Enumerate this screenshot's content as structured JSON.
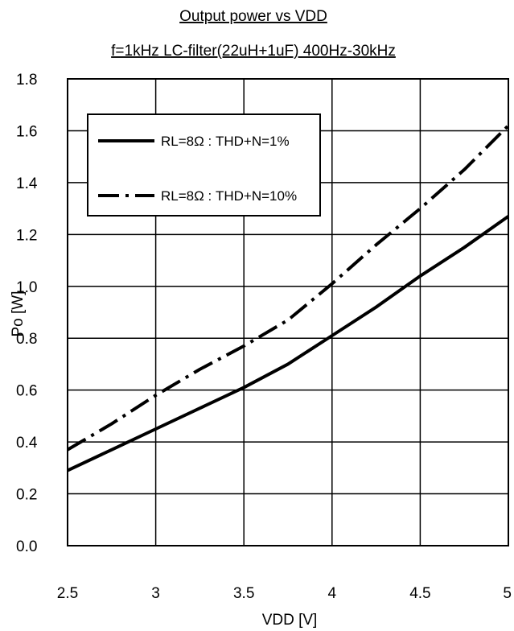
{
  "chart_data": {
    "type": "line",
    "title": "Output power vs VDD",
    "subtitle": "f=1kHz LC-filter(22uH+1uF) 400Hz-30kHz",
    "xlabel": "VDD [V]",
    "ylabel": "Po [W]",
    "xlim": [
      2.5,
      5
    ],
    "ylim": [
      0,
      1.8
    ],
    "xticks": [
      "2.5",
      "3",
      "3.5",
      "4",
      "4.5",
      "5"
    ],
    "yticks": [
      "0.0",
      "0.2",
      "0.4",
      "0.6",
      "0.8",
      "1.0",
      "1.2",
      "1.4",
      "1.6",
      "1.8"
    ],
    "grid": true,
    "legend_position": "top-left",
    "series": [
      {
        "name": "RL=8Ω : THD+N=1%",
        "line_style": "solid",
        "color": "#000000",
        "x": [
          2.5,
          2.75,
          3.0,
          3.25,
          3.5,
          3.75,
          4.0,
          4.25,
          4.5,
          4.75,
          5.0
        ],
        "y": [
          0.29,
          0.37,
          0.45,
          0.53,
          0.61,
          0.7,
          0.81,
          0.92,
          1.04,
          1.15,
          1.27
        ]
      },
      {
        "name": "RL=8Ω : THD+N=10%",
        "line_style": "dash-dot",
        "color": "#000000",
        "x": [
          2.5,
          2.75,
          3.0,
          3.25,
          3.5,
          3.75,
          4.0,
          4.25,
          4.5,
          4.75,
          5.0
        ],
        "y": [
          0.37,
          0.47,
          0.58,
          0.68,
          0.77,
          0.87,
          1.01,
          1.16,
          1.3,
          1.45,
          1.62
        ]
      }
    ]
  }
}
